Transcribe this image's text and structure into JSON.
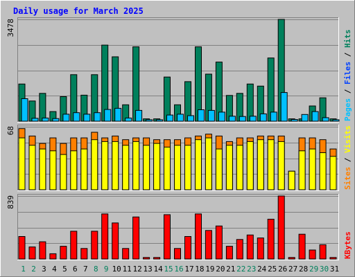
{
  "title": "Daily usage for March 2025",
  "colors": {
    "background": "#c0c0c0",
    "frame_dark": "#808080",
    "frame_light": "#ffffff",
    "title": "#0000ff",
    "gridline": "#808080",
    "hits": "#00805c",
    "files": "#0040ff",
    "pages": "#00c0ff",
    "visits": "#ffff00",
    "sites": "#ff8000",
    "kbytes": "#ff0000",
    "weekday_label": "#000000",
    "weekend_label": "#00805c",
    "bar_outline": "#000000"
  },
  "chart_data": [
    {
      "type": "bar",
      "id": "hits_files_pages",
      "title": "Daily usage for March 2025",
      "categories": [
        "1",
        "2",
        "3",
        "4",
        "5",
        "6",
        "7",
        "8",
        "9",
        "10",
        "11",
        "12",
        "13",
        "14",
        "15",
        "16",
        "17",
        "18",
        "19",
        "20",
        "21",
        "22",
        "23",
        "24",
        "25",
        "26",
        "27",
        "28",
        "29",
        "30",
        "31"
      ],
      "ymax_label": "3478",
      "ylim": [
        0,
        3478
      ],
      "legend": [
        {
          "text": "Pages",
          "color": "#00c0ff"
        },
        {
          "text": " / ",
          "color": "#000000"
        },
        {
          "text": "Files",
          "color": "#0040ff"
        },
        {
          "text": " / ",
          "color": "#000000"
        },
        {
          "text": "Hits",
          "color": "#00805c"
        }
      ],
      "series": [
        {
          "name": "Hits",
          "values": [
            1270,
            690,
            950,
            330,
            840,
            1590,
            890,
            1590,
            2600,
            2200,
            560,
            2540,
            80,
            80,
            1510,
            560,
            1350,
            2540,
            1610,
            2020,
            880,
            950,
            1270,
            1200,
            2160,
            3478,
            80,
            80,
            520,
            800,
            80
          ]
        },
        {
          "name": "Files",
          "values": [
            770,
            100,
            110,
            90,
            240,
            290,
            240,
            290,
            400,
            440,
            110,
            370,
            50,
            50,
            210,
            240,
            190,
            390,
            370,
            310,
            170,
            160,
            170,
            250,
            310,
            980,
            60,
            230,
            330,
            120,
            50
          ]
        },
        {
          "name": "Pages",
          "values": [
            770,
            100,
            110,
            90,
            240,
            290,
            240,
            290,
            400,
            440,
            110,
            370,
            50,
            50,
            210,
            240,
            190,
            390,
            370,
            310,
            170,
            160,
            170,
            250,
            310,
            980,
            60,
            230,
            330,
            120,
            50
          ]
        }
      ],
      "grid": true
    },
    {
      "type": "bar",
      "id": "visits_sites",
      "categories": [
        "1",
        "2",
        "3",
        "4",
        "5",
        "6",
        "7",
        "8",
        "9",
        "10",
        "11",
        "12",
        "13",
        "14",
        "15",
        "16",
        "17",
        "18",
        "19",
        "20",
        "21",
        "22",
        "23",
        "24",
        "25",
        "26",
        "27",
        "28",
        "29",
        "30",
        "31"
      ],
      "ymax_label": "68",
      "ylim": [
        0,
        68
      ],
      "legend": [
        {
          "text": "Sites",
          "color": "#ff8000"
        },
        {
          "text": " / ",
          "color": "#000000"
        },
        {
          "text": "Visits",
          "color": "#ffff00"
        }
      ],
      "series": [
        {
          "name": "Visits",
          "values": [
            56,
            48,
            44,
            42,
            38,
            42,
            44,
            54,
            52,
            52,
            48,
            52,
            48,
            50,
            46,
            48,
            48,
            54,
            56,
            44,
            48,
            48,
            52,
            54,
            54,
            52,
            20,
            42,
            44,
            40,
            36
          ]
        },
        {
          "name": "Sites",
          "values": [
            66,
            58,
            50,
            56,
            50,
            56,
            56,
            62,
            56,
            58,
            54,
            56,
            56,
            54,
            54,
            54,
            56,
            58,
            60,
            58,
            52,
            56,
            56,
            58,
            58,
            58,
            20,
            56,
            56,
            54,
            44
          ]
        }
      ],
      "grid": true
    },
    {
      "type": "bar",
      "id": "kbytes",
      "categories": [
        "1",
        "2",
        "3",
        "4",
        "5",
        "6",
        "7",
        "8",
        "9",
        "10",
        "11",
        "12",
        "13",
        "14",
        "15",
        "16",
        "17",
        "18",
        "19",
        "20",
        "21",
        "22",
        "23",
        "24",
        "25",
        "26",
        "27",
        "28",
        "29",
        "30",
        "31"
      ],
      "ymax_label": "839",
      "ylim": [
        0,
        839
      ],
      "legend": [
        {
          "text": "KBytes",
          "color": "#ff0000"
        }
      ],
      "series": [
        {
          "name": "KBytes",
          "values": [
            300,
            160,
            230,
            70,
            170,
            370,
            140,
            370,
            600,
            480,
            140,
            560,
            20,
            20,
            590,
            140,
            300,
            600,
            380,
            440,
            170,
            260,
            320,
            280,
            530,
            839,
            20,
            330,
            120,
            190,
            20
          ]
        }
      ],
      "grid": true
    }
  ]
}
